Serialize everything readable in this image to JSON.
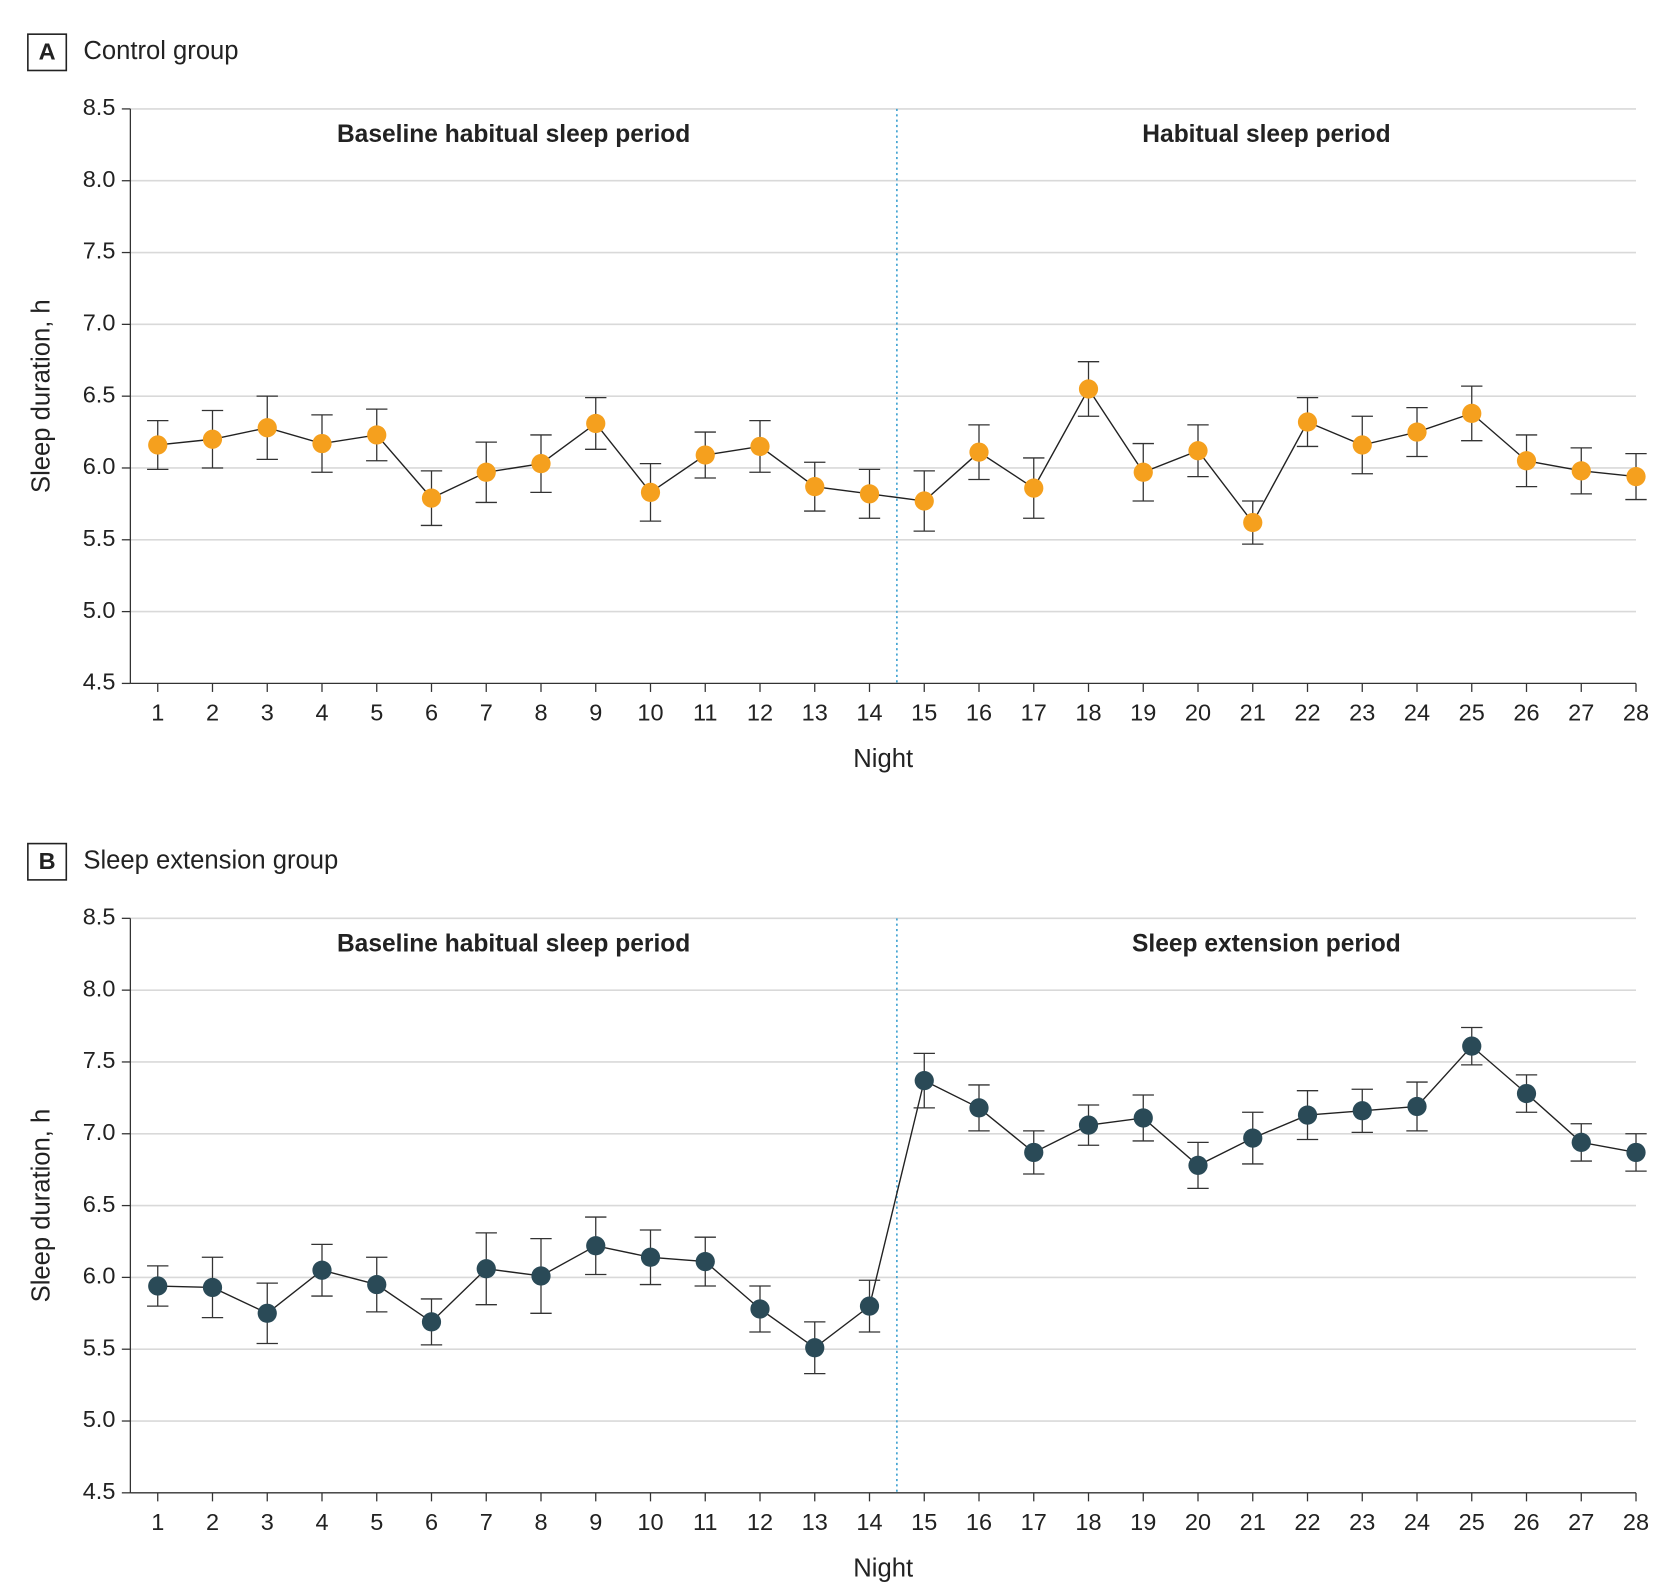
{
  "chart_data": [
    {
      "type": "line",
      "panel": "A",
      "title": "Control group",
      "annotations": [
        "Baseline habitual sleep period",
        "Habitual sleep period"
      ],
      "vlines": [
        14.5
      ],
      "xlabel": "Night",
      "ylabel": "Sleep duration, h",
      "x": [
        1,
        2,
        3,
        4,
        5,
        6,
        7,
        8,
        9,
        10,
        11,
        12,
        13,
        14,
        15,
        16,
        17,
        18,
        19,
        20,
        21,
        22,
        23,
        24,
        25,
        26,
        27,
        28
      ],
      "series": [
        {
          "color": "#f5a01e",
          "values": [
            6.16,
            6.2,
            6.28,
            6.17,
            6.23,
            5.79,
            5.97,
            6.03,
            6.31,
            5.83,
            6.09,
            6.15,
            5.87,
            5.82,
            5.77,
            6.11,
            5.86,
            6.55,
            5.97,
            6.12,
            5.62,
            6.32,
            6.16,
            6.25,
            6.38,
            6.05,
            5.98,
            5.94
          ],
          "errors": [
            0.17,
            0.2,
            0.22,
            0.2,
            0.18,
            0.19,
            0.21,
            0.2,
            0.18,
            0.2,
            0.16,
            0.18,
            0.17,
            0.17,
            0.21,
            0.19,
            0.21,
            0.19,
            0.2,
            0.18,
            0.15,
            0.17,
            0.2,
            0.17,
            0.19,
            0.18,
            0.16,
            0.16
          ]
        }
      ],
      "xlim": [
        0.5,
        28
      ],
      "xticks": [
        1,
        2,
        3,
        4,
        5,
        6,
        7,
        8,
        9,
        10,
        11,
        12,
        13,
        14,
        15,
        16,
        17,
        18,
        19,
        20,
        21,
        22,
        23,
        24,
        25,
        26,
        27,
        28
      ],
      "ylim": [
        4.5,
        8.5
      ],
      "yticks": [
        4.5,
        {
          "value": 5,
          "label": "5.0"
        },
        5.5,
        {
          "value": 6,
          "label": "6.0"
        },
        6.5,
        {
          "value": 7,
          "label": "7.0"
        },
        7.5,
        {
          "value": 8,
          "label": "8.0"
        },
        8.5
      ],
      "grid": true
    },
    {
      "type": "line",
      "panel": "B",
      "title": "Sleep extension group",
      "annotations": [
        "Baseline habitual sleep period",
        "Sleep extension period"
      ],
      "vlines": [
        14.5
      ],
      "xlabel": "Night",
      "ylabel": "Sleep duration, h",
      "x": [
        1,
        2,
        3,
        4,
        5,
        6,
        7,
        8,
        9,
        10,
        11,
        12,
        13,
        14,
        15,
        16,
        17,
        18,
        19,
        20,
        21,
        22,
        23,
        24,
        25,
        26,
        27,
        28
      ],
      "series": [
        {
          "color": "#2a4a57",
          "values": [
            5.94,
            5.93,
            5.75,
            6.05,
            5.95,
            5.69,
            6.06,
            6.01,
            6.22,
            6.14,
            6.11,
            5.78,
            5.51,
            5.8,
            7.37,
            7.18,
            6.87,
            7.06,
            7.11,
            6.78,
            6.97,
            7.13,
            7.16,
            7.19,
            7.61,
            7.28,
            6.94,
            6.87
          ],
          "errors": [
            0.14,
            0.21,
            0.21,
            0.18,
            0.19,
            0.16,
            0.25,
            0.26,
            0.2,
            0.19,
            0.17,
            0.16,
            0.18,
            0.18,
            0.19,
            0.16,
            0.15,
            0.14,
            0.16,
            0.16,
            0.18,
            0.17,
            0.15,
            0.17,
            0.13,
            0.13,
            0.13,
            0.13
          ]
        }
      ],
      "xlim": [
        0.5,
        28
      ],
      "xticks": [
        1,
        2,
        3,
        4,
        5,
        6,
        7,
        8,
        9,
        10,
        11,
        12,
        13,
        14,
        15,
        16,
        17,
        18,
        19,
        20,
        21,
        22,
        23,
        24,
        25,
        26,
        27,
        28
      ],
      "ylim": [
        4.5,
        8.5
      ],
      "yticks": [
        4.5,
        {
          "value": 5,
          "label": "5.0"
        },
        5.5,
        {
          "value": 6,
          "label": "6.0"
        },
        6.5,
        {
          "value": 7,
          "label": "7.0"
        },
        7.5,
        {
          "value": 8,
          "label": "8.0"
        },
        8.5
      ],
      "grid": true
    }
  ]
}
